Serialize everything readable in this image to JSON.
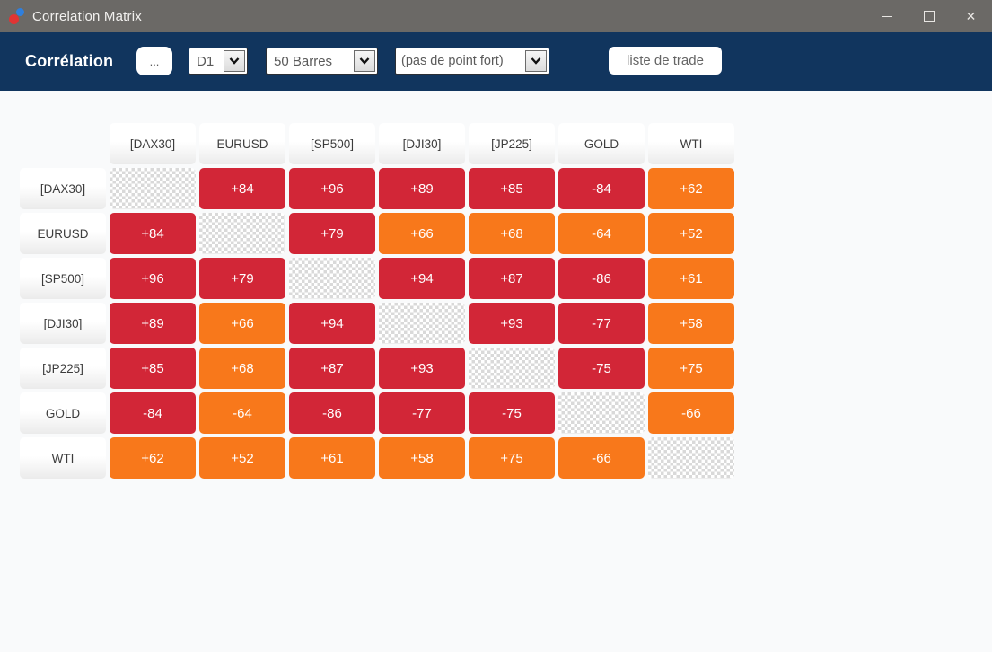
{
  "window": {
    "title": "Correlation Matrix",
    "controls": {
      "minimize": "minimize",
      "maximize": "maximize",
      "close": "close"
    }
  },
  "toolbar": {
    "title": "Corrélation",
    "more_button_label": "...",
    "timeframe_value": "D1",
    "bars_value": "50 Barres",
    "strong_point_value": "(pas de point fort)",
    "trade_list_label": "liste de trade"
  },
  "colors": {
    "strong": "#d22637",
    "weak": "#f8781b",
    "toolbar_bg": "#11355e",
    "titlebar_bg": "#6b6966"
  },
  "chart_data": {
    "type": "heatmap",
    "title": "Correlation Matrix",
    "symbols": [
      "[DAX30]",
      "EURUSD",
      "[SP500]",
      "[DJI30]",
      "[JP225]",
      "GOLD",
      "WTI"
    ],
    "values": [
      [
        null,
        84,
        96,
        89,
        85,
        -84,
        62
      ],
      [
        84,
        null,
        79,
        66,
        68,
        -64,
        52
      ],
      [
        96,
        79,
        null,
        94,
        87,
        -86,
        61
      ],
      [
        89,
        66,
        94,
        null,
        93,
        -77,
        58
      ],
      [
        85,
        68,
        87,
        93,
        null,
        -75,
        75
      ],
      [
        -84,
        -64,
        -86,
        -77,
        -75,
        null,
        -66
      ],
      [
        62,
        52,
        61,
        58,
        75,
        -66,
        null
      ]
    ],
    "cell_colors": [
      [
        null,
        "strong",
        "strong",
        "strong",
        "strong",
        "strong",
        "weak"
      ],
      [
        "strong",
        null,
        "strong",
        "weak",
        "weak",
        "weak",
        "weak"
      ],
      [
        "strong",
        "strong",
        null,
        "strong",
        "strong",
        "strong",
        "weak"
      ],
      [
        "strong",
        "weak",
        "strong",
        null,
        "strong",
        "strong",
        "weak"
      ],
      [
        "strong",
        "weak",
        "strong",
        "strong",
        null,
        "strong",
        "weak"
      ],
      [
        "strong",
        "weak",
        "strong",
        "strong",
        "strong",
        null,
        "weak"
      ],
      [
        "weak",
        "weak",
        "weak",
        "weak",
        "weak",
        "weak",
        null
      ]
    ]
  }
}
